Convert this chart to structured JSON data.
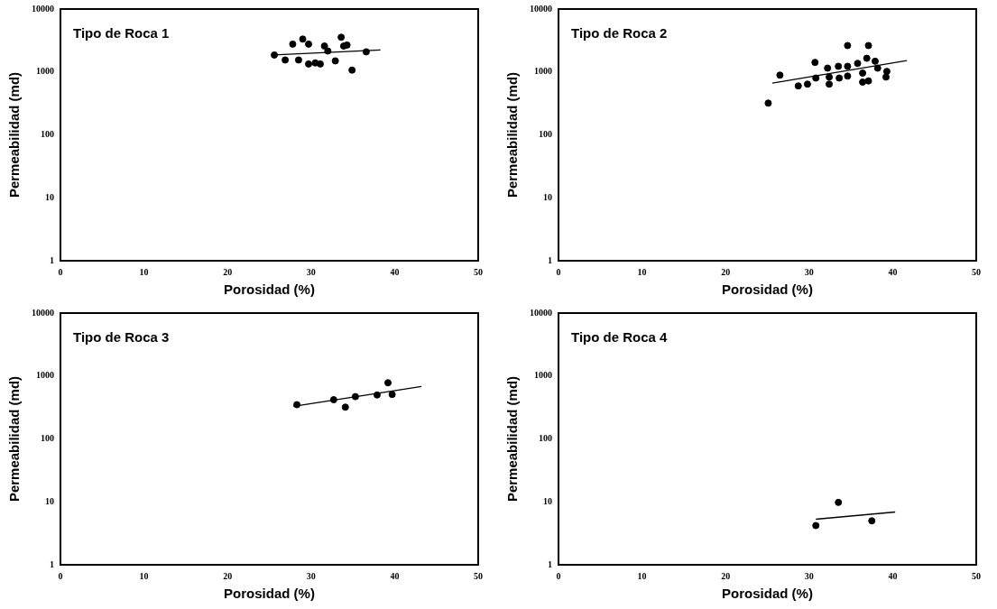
{
  "chart_data": [
    {
      "type": "scatter",
      "title": "Tipo de Roca 1",
      "xlabel": "Porosidad (%)",
      "ylabel": "Permeabilidad (md)",
      "log": "y",
      "xlim": [
        0,
        50
      ],
      "xticks": [
        0,
        10,
        20,
        30,
        40,
        50
      ],
      "ylim": [
        1,
        10000
      ],
      "yticks": [
        1,
        10,
        100,
        1000,
        10000
      ],
      "grid": false,
      "legend": false,
      "series": [
        {
          "marker": "circle",
          "color": "#000000",
          "x": [
            25.6,
            26.9,
            27.8,
            29.0,
            29.7,
            28.5,
            29.7,
            30.5,
            31.1,
            31.6,
            32.0,
            32.9,
            33.6,
            33.9,
            34.3,
            34.9,
            36.6
          ],
          "values": [
            1860,
            1550,
            2770,
            3330,
            2770,
            1550,
            1340,
            1390,
            1340,
            2580,
            2150,
            1500,
            3560,
            2580,
            2680,
            1070,
            2090
          ]
        },
        {
          "type": "line",
          "marker": "none",
          "color": "#000000",
          "x": [
            25.6,
            38.3
          ],
          "values": [
            1860,
            2240
          ]
        }
      ]
    },
    {
      "type": "scatter",
      "title": "Tipo de Roca 2",
      "xlabel": "Porosidad (%)",
      "ylabel": "Permeabilidad (md)",
      "log": "y",
      "xlim": [
        0,
        50
      ],
      "xticks": [
        0,
        10,
        20,
        30,
        40,
        50
      ],
      "ylim": [
        1,
        10000
      ],
      "yticks": [
        1,
        10,
        100,
        1000,
        10000
      ],
      "grid": false,
      "legend": false,
      "series": [
        {
          "marker": "circle",
          "color": "#000000",
          "x": [
            25.1,
            26.5,
            28.7,
            29.8,
            30.7,
            30.8,
            32.2,
            32.4,
            32.4,
            33.6,
            33.5,
            34.6,
            34.6,
            34.6,
            35.8,
            36.4,
            36.4,
            37.1,
            37.1,
            36.9,
            37.9,
            38.2,
            39.3,
            39.2
          ],
          "values": [
            320,
            890,
            600,
            640,
            1420,
            800,
            1150,
            640,
            830,
            800,
            1230,
            2630,
            860,
            1230,
            1370,
            960,
            690,
            720,
            2630,
            1650,
            1480,
            1150,
            1020,
            830
          ]
        },
        {
          "type": "line",
          "marker": "none",
          "color": "#000000",
          "x": [
            25.6,
            41.7
          ],
          "values": [
            665,
            1520
          ]
        }
      ]
    },
    {
      "type": "scatter",
      "title": "Tipo de Roca 3",
      "xlabel": "Porosidad (%)",
      "ylabel": "Permeabilidad (md)",
      "log": "y",
      "xlim": [
        0,
        50
      ],
      "xticks": [
        0,
        10,
        20,
        30,
        40,
        50
      ],
      "ylim": [
        1,
        10000
      ],
      "yticks": [
        1,
        10,
        100,
        1000,
        10000
      ],
      "grid": false,
      "legend": false,
      "series": [
        {
          "marker": "circle",
          "color": "#000000",
          "x": [
            28.3,
            32.7,
            34.1,
            35.3,
            37.9,
            39.2,
            39.7
          ],
          "values": [
            350,
            420,
            320,
            470,
            500,
            780,
            510
          ]
        },
        {
          "type": "line",
          "marker": "none",
          "color": "#000000",
          "x": [
            27.9,
            43.2
          ],
          "values": [
            330,
            680
          ]
        }
      ]
    },
    {
      "type": "scatter",
      "title": "Tipo de Roca 4",
      "xlabel": "Porosidad (%)",
      "ylabel": "Permeabilidad (md)",
      "log": "y",
      "xlim": [
        0,
        50
      ],
      "xticks": [
        0,
        10,
        20,
        30,
        40,
        50
      ],
      "ylim": [
        1,
        10000
      ],
      "yticks": [
        1,
        10,
        100,
        1000,
        10000
      ],
      "grid": false,
      "legend": false,
      "series": [
        {
          "marker": "circle",
          "color": "#000000",
          "x": [
            30.8,
            33.5,
            37.5
          ],
          "values": [
            4.2,
            9.8,
            5.0
          ]
        },
        {
          "type": "line",
          "marker": "none",
          "color": "#000000",
          "x": [
            30.8,
            40.3
          ],
          "values": [
            5.3,
            6.9
          ]
        }
      ]
    }
  ]
}
